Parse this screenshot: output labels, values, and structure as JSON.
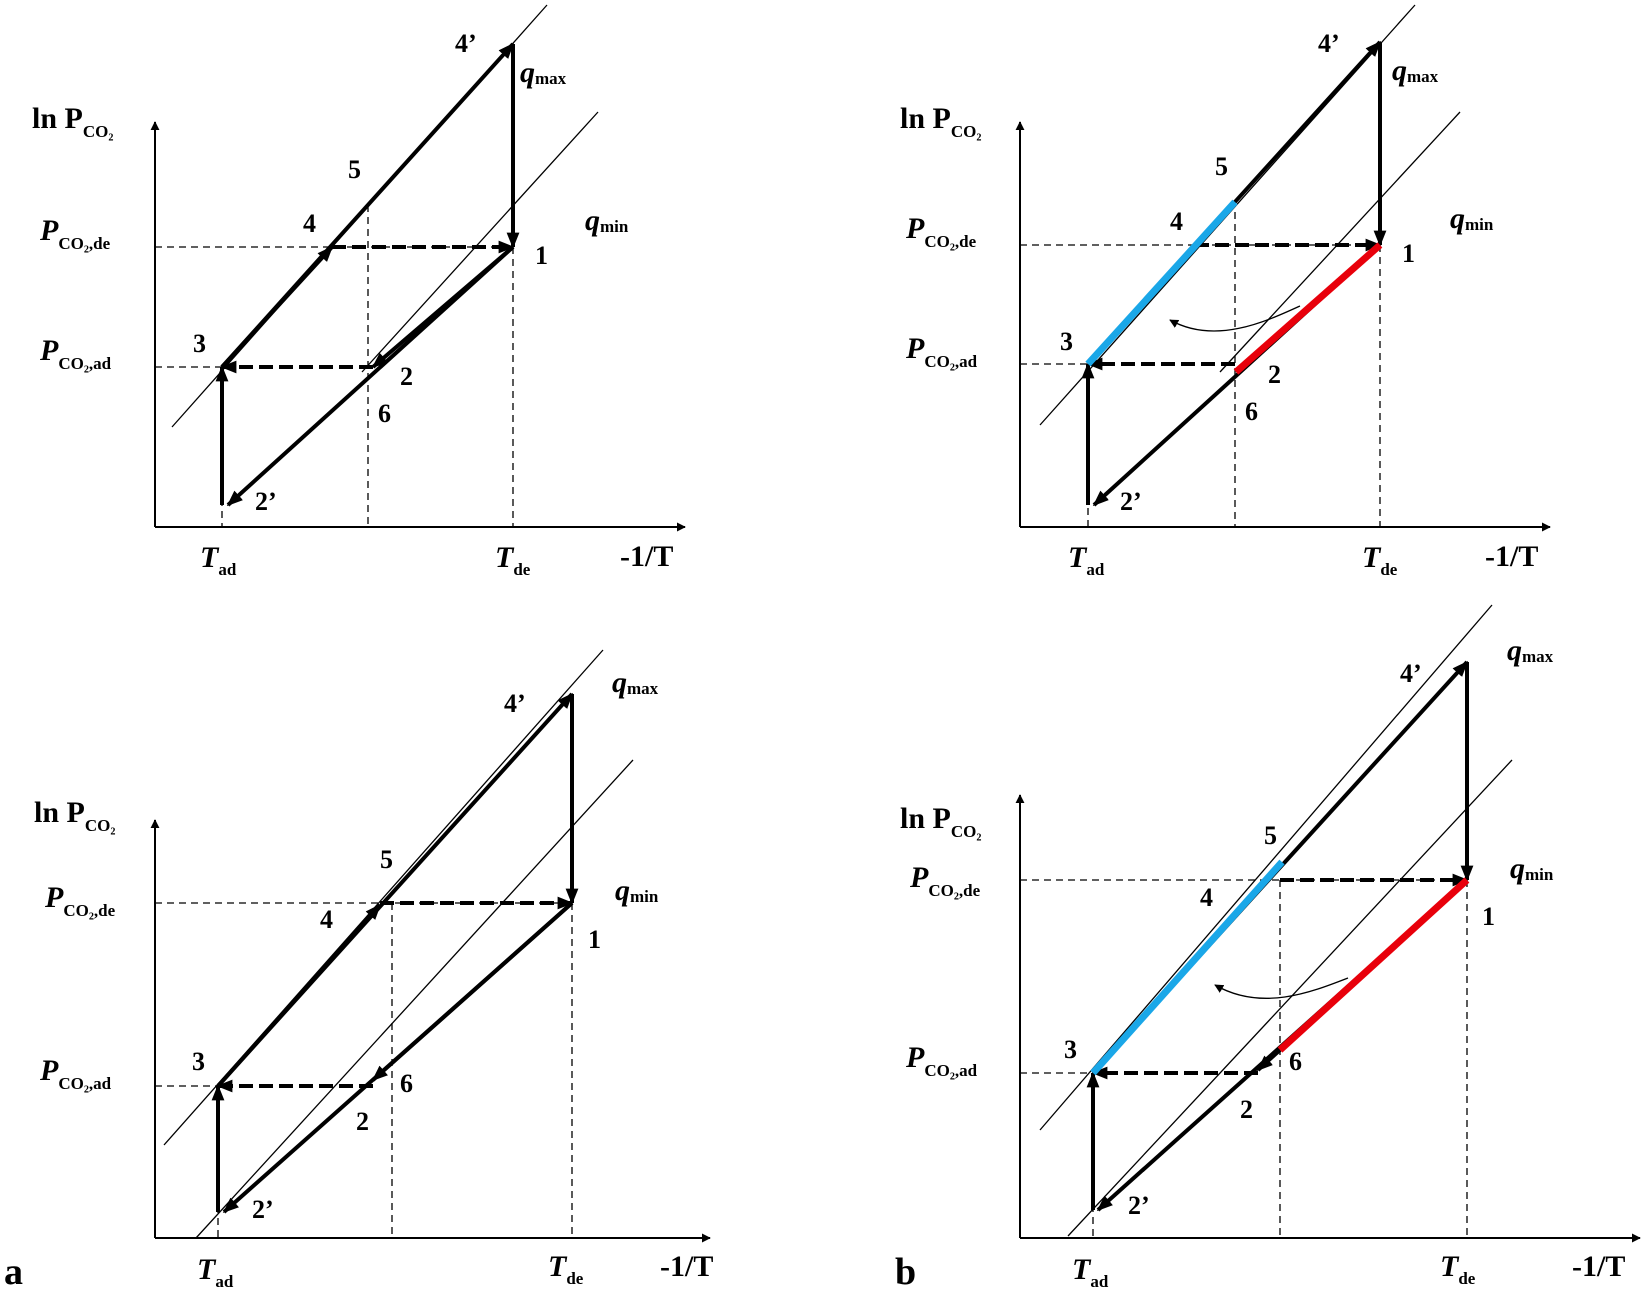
{
  "labels": {
    "y_axis": "ln P",
    "y_axis_sub": "CO₂",
    "x_axis": "-1/T",
    "p_de": "P",
    "p_de_sub": "CO₂,de",
    "p_ad": "P",
    "p_ad_sub": "CO₂,ad",
    "t_ad": "T",
    "t_ad_sub": "ad",
    "t_de": "T",
    "t_de_sub": "de",
    "q_max": "q",
    "q_max_sub": "max",
    "q_min": "q",
    "q_min_sub": "min",
    "points": [
      "1",
      "2",
      "3",
      "4",
      "5",
      "6",
      "2’",
      "4’"
    ]
  },
  "panel_letters": {
    "a": "a",
    "b": "b"
  },
  "colors": {
    "line": "#000000",
    "heat_source": "#e8000b",
    "heat_sink": "#1aa7e8"
  },
  "panels": [
    {
      "id": "top-left",
      "variant": "a",
      "highlighted": false
    },
    {
      "id": "top-right",
      "variant": "b",
      "highlighted": true
    },
    {
      "id": "bottom-left",
      "variant": "a",
      "highlighted": false
    },
    {
      "id": "bottom-right",
      "variant": "b",
      "highlighted": true
    }
  ]
}
